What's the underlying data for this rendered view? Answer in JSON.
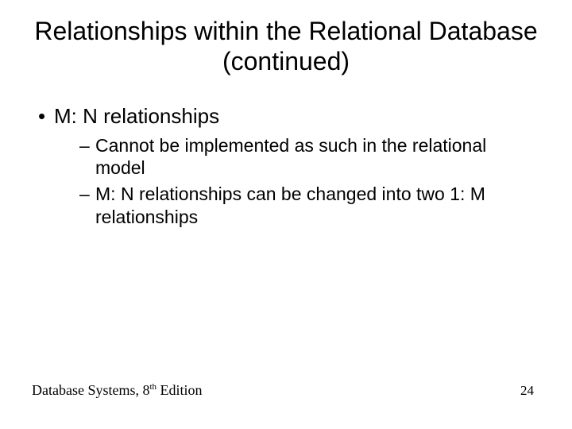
{
  "slide": {
    "title": "Relationships within the Relational Database (continued)",
    "bullets": {
      "b1": "M: N relationships",
      "b1_1": "Cannot be implemented as such in the relational model",
      "b1_2": "M: N relationships can be changed into two 1: M relationships"
    },
    "footer": {
      "book_prefix": "Database Systems, 8",
      "book_ord": "th",
      "book_suffix": " Edition",
      "page": "24"
    },
    "style": {
      "background_color": "#ffffff",
      "text_color": "#000000",
      "title_fontsize": 32,
      "l1_fontsize": 26,
      "l2_fontsize": 23,
      "footer_fontsize": 18,
      "page_fontsize": 17
    }
  }
}
